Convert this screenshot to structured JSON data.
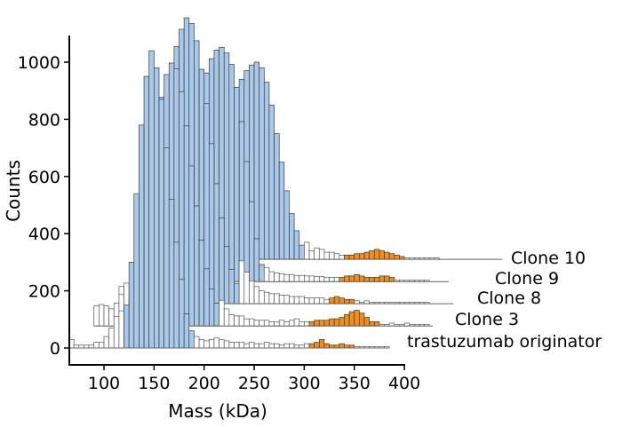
{
  "chart_data": {
    "type": "bar",
    "subtype": "stacked-offset histograms (ridgeline)",
    "xlabel": "Mass (kDa)",
    "ylabel": "Counts",
    "xlim": [
      70,
      400
    ],
    "ylim": [
      -50,
      1100
    ],
    "xticks": [
      "100",
      "150",
      "200",
      "250",
      "300",
      "350",
      "400"
    ],
    "yticks": [
      "0",
      "200",
      "400",
      "600",
      "800",
      "1000"
    ],
    "grid": false,
    "bin_width": 5,
    "colors": {
      "main": "#a9c8ea",
      "low": "#ffffff",
      "high": "#f28c1c",
      "edge": "#3a3a3a"
    },
    "series": [
      {
        "name": "Clone 10",
        "start": 165,
        "main_range": [
          165,
          300
        ],
        "high_range": [
          340,
          400
        ],
        "counts": [
          20,
          40,
          60,
          90,
          130,
          170,
          220,
          270,
          330,
          390,
          450,
          500,
          550,
          590,
          630,
          660,
          680,
          690,
          670,
          620,
          540,
          440,
          340,
          240,
          160,
          100,
          50,
          60,
          30,
          40,
          35,
          25,
          25,
          20,
          15,
          15,
          15,
          20,
          20,
          25,
          30,
          35,
          30,
          25,
          20,
          15,
          10,
          5,
          5,
          5,
          5,
          5,
          5,
          5
        ]
      },
      {
        "name": "Clone 9",
        "start": 140,
        "main_range": [
          140,
          260
        ],
        "high_range": [
          335,
          390
        ],
        "counts": [
          40,
          70,
          110,
          160,
          220,
          290,
          360,
          430,
          500,
          560,
          620,
          680,
          730,
          780,
          810,
          820,
          800,
          760,
          680,
          560,
          420,
          280,
          150,
          60,
          50,
          35,
          30,
          28,
          25,
          25,
          22,
          22,
          20,
          20,
          18,
          18,
          15,
          15,
          15,
          15,
          20,
          20,
          25,
          20,
          15,
          15,
          15,
          20,
          20,
          15,
          5,
          5,
          5,
          5,
          5,
          5,
          5
        ]
      },
      {
        "name": "Clone 8",
        "start": 115,
        "main_range": [
          130,
          235
        ],
        "high_range": [
          325,
          350
        ],
        "counts": [
          60,
          60,
          60,
          80,
          140,
          220,
          320,
          440,
          560,
          680,
          800,
          900,
          960,
          1000,
          980,
          920,
          820,
          700,
          560,
          420,
          300,
          200,
          120,
          70,
          150,
          110,
          80,
          60,
          45,
          40,
          35,
          35,
          30,
          30,
          25,
          25,
          25,
          20,
          20,
          20,
          20,
          15,
          20,
          25,
          20,
          15,
          15,
          10,
          5,
          10,
          5,
          5,
          5,
          5,
          5,
          5,
          5,
          5,
          5,
          5,
          5,
          5
        ]
      },
      {
        "name": "Clone 3",
        "start": 90,
        "main_range": [
          125,
          215
        ],
        "high_range": [
          305,
          375
        ],
        "counts": [
          70,
          75,
          70,
          60,
          80,
          110,
          150,
          100,
          150,
          250,
          380,
          520,
          680,
          800,
          880,
          920,
          900,
          820,
          700,
          560,
          420,
          300,
          200,
          130,
          80,
          90,
          60,
          40,
          35,
          35,
          25,
          25,
          20,
          20,
          20,
          15,
          15,
          20,
          15,
          20,
          25,
          15,
          15,
          15,
          20,
          20,
          20,
          25,
          25,
          30,
          40,
          50,
          55,
          45,
          30,
          15,
          15,
          5,
          5,
          10,
          5,
          5,
          10,
          5,
          5,
          5,
          5
        ]
      },
      {
        "name": "trastuzumab originator",
        "start": 65,
        "main_range": [
          120,
          190
        ],
        "high_range": [
          305,
          350
        ],
        "counts": [
          30,
          10,
          10,
          10,
          10,
          20,
          20,
          40,
          70,
          110,
          130,
          150,
          300,
          540,
          780,
          950,
          1040,
          980,
          870,
          700,
          520,
          370,
          240,
          120,
          60,
          40,
          30,
          25,
          30,
          35,
          30,
          25,
          20,
          20,
          20,
          15,
          20,
          15,
          15,
          20,
          15,
          15,
          10,
          15,
          15,
          10,
          10,
          15,
          15,
          20,
          30,
          15,
          10,
          10,
          15,
          10,
          10,
          5,
          5,
          5,
          5,
          5,
          5,
          5
        ]
      }
    ]
  }
}
